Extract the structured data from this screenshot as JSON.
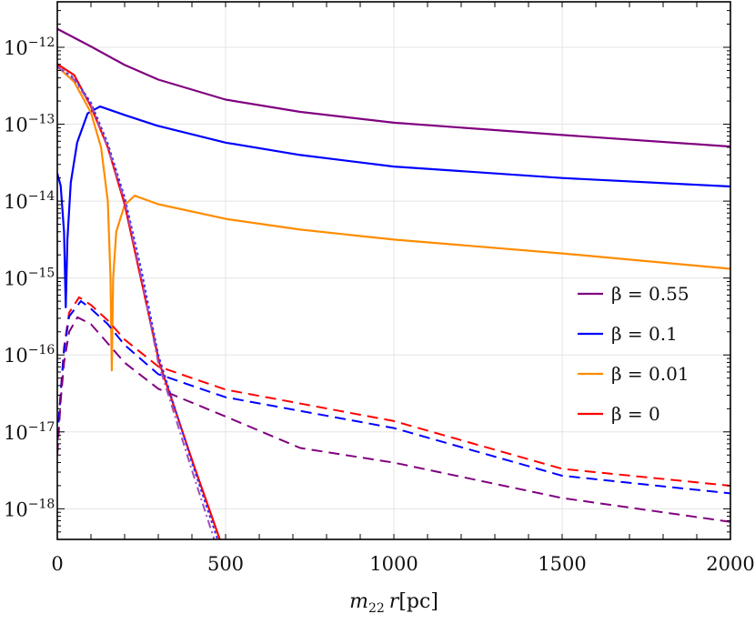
{
  "chart_data": {
    "type": "line",
    "title": "",
    "xlabel": {
      "main": "m",
      "sub": "22",
      "var": "r",
      "unit": "[pc]"
    },
    "ylabel": "",
    "xlim": [
      0,
      2000
    ],
    "ylim": [
      4e-19,
      3.9e-12
    ],
    "yscale": "log",
    "grid": true,
    "legend_placement": "right",
    "x_ticks": [
      0,
      500,
      1000,
      1500,
      2000
    ],
    "x_tick_labels": [
      "0",
      "500",
      "1000",
      "1500",
      "2000"
    ],
    "y_ticks": [
      -12,
      -13,
      -14,
      -15,
      -16,
      -17,
      -18
    ],
    "y_tick_labels": [
      {
        "base": "10",
        "exp": "−12"
      },
      {
        "base": "10",
        "exp": "−13"
      },
      {
        "base": "10",
        "exp": "−14"
      },
      {
        "base": "10",
        "exp": "−15"
      },
      {
        "base": "10",
        "exp": "−16"
      },
      {
        "base": "10",
        "exp": "−17"
      },
      {
        "base": "10",
        "exp": "−18"
      }
    ],
    "series": [
      {
        "name": "β = 0.55",
        "color": "#800080",
        "style": "solid",
        "x": [
          0,
          100,
          200,
          300,
          500,
          722,
          1000,
          1500,
          2000
        ],
        "log10y": [
          -11.76,
          -11.99,
          -12.23,
          -12.42,
          -12.68,
          -12.84,
          -12.98,
          -13.14,
          -13.29
        ]
      },
      {
        "name": "β = 0.1",
        "color": "#0000ff",
        "style": "solid",
        "x": [
          0,
          10,
          20,
          25,
          30,
          40,
          59,
          90,
          127,
          200,
          297,
          500,
          722,
          1000,
          1500,
          2000
        ],
        "log10y": [
          -13.64,
          -13.8,
          -14.4,
          -15.38,
          -14.5,
          -13.76,
          -13.24,
          -12.86,
          -12.77,
          -12.88,
          -13.02,
          -13.24,
          -13.4,
          -13.55,
          -13.7,
          -13.81
        ]
      },
      {
        "name": "β = 0.01",
        "color": "#ff8c00",
        "style": "solid",
        "x": [
          0,
          50,
          100,
          130,
          150,
          158,
          162,
          166,
          175,
          200,
          230,
          300,
          500,
          722,
          1000,
          1500,
          2000
        ],
        "log10y": [
          -12.25,
          -12.45,
          -12.85,
          -13.3,
          -14.0,
          -15.0,
          -16.2,
          -15.0,
          -14.4,
          -14.05,
          -13.93,
          -14.04,
          -14.23,
          -14.37,
          -14.5,
          -14.68,
          -14.88
        ]
      },
      {
        "name": "β = 0",
        "color": "#ff0000",
        "style": "solid",
        "x": [
          0,
          50,
          100,
          150,
          200,
          303,
          405,
          487
        ],
        "log10y": [
          -12.22,
          -12.36,
          -12.77,
          -13.3,
          -14.04,
          -16.1,
          -17.43,
          -18.45
        ]
      },
      {
        "color": "#ff0000",
        "style": "dashed",
        "x": [
          0,
          10,
          20,
          35,
          65,
          100,
          150,
          200,
          300,
          500,
          1000,
          1500,
          2000
        ],
        "log10y": [
          -17.1,
          -16.5,
          -15.9,
          -15.45,
          -15.25,
          -15.35,
          -15.55,
          -15.8,
          -16.15,
          -16.45,
          -16.86,
          -17.48,
          -17.7
        ]
      },
      {
        "color": "#0000ff",
        "style": "dashed",
        "x": [
          0,
          10,
          20,
          35,
          70,
          100,
          150,
          200,
          300,
          500,
          1000,
          1500,
          2000
        ],
        "log10y": [
          -17.1,
          -16.5,
          -15.95,
          -15.5,
          -15.3,
          -15.4,
          -15.6,
          -15.87,
          -16.25,
          -16.55,
          -16.95,
          -17.57,
          -17.8
        ]
      },
      {
        "color": "#800080",
        "style": "dashed",
        "x": [
          0,
          10,
          20,
          35,
          60,
          100,
          150,
          200,
          300,
          500,
          722,
          1000,
          1500,
          2000
        ],
        "log10y": [
          -17.3,
          -16.6,
          -16.1,
          -15.7,
          -15.51,
          -15.6,
          -15.85,
          -16.1,
          -16.44,
          -16.8,
          -17.21,
          -17.4,
          -17.86,
          -18.17
        ]
      },
      {
        "color": "#3333ff",
        "style": "dotted",
        "x": [
          0,
          50,
          100,
          150,
          200,
          250,
          300,
          400,
          480
        ],
        "log10y": [
          -12.25,
          -12.4,
          -12.72,
          -13.25,
          -13.95,
          -14.9,
          -16.0,
          -17.4,
          -18.45
        ]
      },
      {
        "color": "#a050b8",
        "style": "dashdot",
        "x": [
          0,
          50,
          100,
          150,
          200,
          250,
          300,
          400,
          470
        ],
        "log10y": [
          -12.25,
          -12.42,
          -12.75,
          -13.3,
          -14.0,
          -15.0,
          -16.1,
          -17.5,
          -18.45
        ]
      }
    ]
  }
}
